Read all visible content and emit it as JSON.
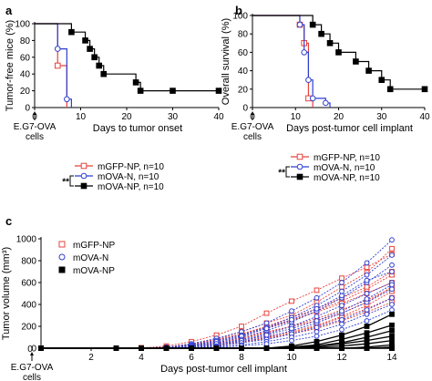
{
  "chart_data": [
    {
      "panel": "a",
      "type": "step",
      "xlabel": "Days to tumor onset",
      "ylabel": "Tumor-free mice (%)",
      "xlim": [
        0,
        40
      ],
      "ylim": [
        0,
        100
      ],
      "xticks": [
        0,
        10,
        20,
        30,
        40
      ],
      "yticks": [
        0,
        20,
        40,
        60,
        80,
        100
      ],
      "annotation": "E.G7-OVA cells",
      "significance": "**",
      "series": [
        {
          "name": "mGFP-NP, n=10",
          "color": "#e8413c",
          "marker": "square-open",
          "x": [
            0,
            5,
            5,
            7,
            7
          ],
          "y": [
            100,
            100,
            50,
            50,
            0
          ],
          "markers": [
            [
              5,
              50
            ]
          ]
        },
        {
          "name": "mOVA-N, n=10",
          "color": "#2f3fcf",
          "marker": "circle-open",
          "x": [
            0,
            5,
            5,
            7,
            7,
            8,
            8
          ],
          "y": [
            100,
            100,
            70,
            70,
            10,
            10,
            0
          ],
          "markers": [
            [
              5,
              70
            ],
            [
              7,
              10
            ]
          ]
        },
        {
          "name": "mOVA-NP, n=10",
          "color": "#000000",
          "marker": "square-filled",
          "x": [
            0,
            8,
            8,
            11,
            11,
            12,
            12,
            13,
            13,
            14,
            14,
            15,
            15,
            22,
            22,
            23,
            23,
            40
          ],
          "y": [
            100,
            100,
            90,
            90,
            80,
            80,
            70,
            70,
            60,
            60,
            50,
            50,
            40,
            40,
            30,
            30,
            20,
            20
          ],
          "markers": [
            [
              8,
              90
            ],
            [
              11,
              80
            ],
            [
              12,
              70
            ],
            [
              13,
              60
            ],
            [
              14,
              50
            ],
            [
              15,
              40
            ],
            [
              22,
              30
            ],
            [
              23,
              20
            ],
            [
              30,
              20
            ],
            [
              40,
              20
            ]
          ]
        }
      ]
    },
    {
      "panel": "b",
      "type": "step",
      "xlabel": "Days post-tumor cell implant",
      "ylabel": "Overall survival (%)",
      "xlim": [
        0,
        40
      ],
      "ylim": [
        0,
        100
      ],
      "xticks": [
        0,
        10,
        20,
        30,
        40
      ],
      "yticks": [
        0,
        20,
        40,
        60,
        80,
        100
      ],
      "annotation": "E.G7-OVA cells",
      "significance": "**",
      "series": [
        {
          "name": "mGFP-NP, n=10",
          "color": "#e8413c",
          "marker": "square-open",
          "x": [
            0,
            11,
            11,
            12,
            12,
            13,
            13,
            14,
            14
          ],
          "y": [
            100,
            100,
            90,
            90,
            70,
            70,
            10,
            10,
            0
          ],
          "markers": [
            [
              11,
              90
            ],
            [
              12,
              70
            ],
            [
              13,
              10
            ]
          ]
        },
        {
          "name": "mOVA-N, n=10",
          "color": "#2f3fcf",
          "marker": "circle-open",
          "x": [
            0,
            11,
            11,
            12,
            12,
            13,
            13,
            14,
            14,
            17,
            17,
            18,
            18
          ],
          "y": [
            100,
            100,
            90,
            90,
            60,
            60,
            30,
            30,
            10,
            10,
            5,
            5,
            0
          ],
          "markers": [
            [
              11,
              90
            ],
            [
              12,
              60
            ],
            [
              13,
              30
            ],
            [
              14,
              10
            ],
            [
              17,
              5
            ]
          ]
        },
        {
          "name": "mOVA-NP, n=10",
          "color": "#000000",
          "marker": "square-filled",
          "x": [
            0,
            14,
            14,
            16,
            16,
            18,
            18,
            20,
            20,
            24,
            24,
            27,
            27,
            30,
            30,
            32,
            32,
            40
          ],
          "y": [
            100,
            100,
            90,
            90,
            80,
            80,
            70,
            70,
            60,
            60,
            50,
            50,
            40,
            40,
            30,
            30,
            20,
            20
          ],
          "markers": [
            [
              14,
              90
            ],
            [
              16,
              80
            ],
            [
              18,
              70
            ],
            [
              20,
              60
            ],
            [
              24,
              50
            ],
            [
              27,
              40
            ],
            [
              30,
              30
            ],
            [
              32,
              20
            ],
            [
              40,
              20
            ]
          ]
        }
      ]
    },
    {
      "panel": "c",
      "type": "line",
      "xlabel": "Days post-tumor cell implant",
      "ylabel": "Tumor volume (mm³)",
      "xlim": [
        0,
        14
      ],
      "ylim": [
        0,
        1000
      ],
      "xticks": [
        2,
        4,
        6,
        8,
        10,
        12,
        14
      ],
      "extra_xtick_label": "0",
      "yticks": [
        0,
        200,
        400,
        600,
        800,
        1000
      ],
      "annotation": "E.G7-OVA cells",
      "x": [
        0,
        3,
        4,
        5,
        6,
        7,
        8,
        9,
        10,
        11,
        12,
        13,
        14
      ],
      "series": [
        {
          "name": "mGFP-NP",
          "color": "#e8413c",
          "marker": "square-open",
          "dashed": true,
          "individuals": [
            [
              0,
              0,
              0,
              10,
              40,
              80,
              150,
              230,
              300,
              420,
              560,
              690,
              910
            ],
            [
              0,
              0,
              0,
              5,
              20,
              50,
              90,
              150,
              200,
              250,
              320,
              420,
              560
            ],
            [
              0,
              0,
              0,
              20,
              60,
              120,
              200,
              320,
              430,
              530,
              640,
              740,
              860
            ],
            [
              0,
              0,
              0,
              0,
              15,
              30,
              70,
              110,
              150,
              210,
              290,
              390,
              520
            ],
            [
              0,
              0,
              0,
              5,
              25,
              60,
              110,
              180,
              250,
              340,
              430,
              540,
              670
            ],
            [
              0,
              0,
              5,
              10,
              30,
              70,
              130,
              200,
              280,
              360,
              460,
              560,
              700
            ],
            [
              0,
              0,
              0,
              0,
              10,
              25,
              55,
              95,
              140,
              200,
              280,
              360,
              460
            ],
            [
              0,
              0,
              0,
              10,
              35,
              75,
              130,
              190,
              260,
              330,
              410,
              500,
              600
            ],
            [
              0,
              0,
              0,
              5,
              20,
              45,
              90,
              140,
              200,
              270,
              350,
              440,
              550
            ],
            [
              0,
              0,
              0,
              0,
              5,
              20,
              50,
              90,
              130,
              180,
              250,
              330,
              420
            ]
          ]
        },
        {
          "name": "mOVA-N",
          "color": "#2f3fcf",
          "marker": "circle-open",
          "dashed": true,
          "individuals": [
            [
              0,
              0,
              0,
              10,
              40,
              90,
              150,
              230,
              340,
              460,
              600,
              780,
              990
            ],
            [
              0,
              0,
              0,
              5,
              30,
              70,
              120,
              190,
              280,
              390,
              520,
              670,
              850
            ],
            [
              0,
              0,
              0,
              0,
              20,
              50,
              100,
              160,
              240,
              340,
              460,
              600,
              760
            ],
            [
              0,
              0,
              0,
              5,
              25,
              60,
              110,
              180,
              260,
              360,
              480,
              620,
              700
            ],
            [
              0,
              0,
              0,
              0,
              15,
              40,
              80,
              130,
              200,
              290,
              390,
              500,
              600
            ],
            [
              0,
              0,
              0,
              0,
              10,
              30,
              60,
              100,
              160,
              230,
              320,
              420,
              540
            ],
            [
              0,
              0,
              0,
              5,
              15,
              40,
              70,
              120,
              180,
              250,
              340,
              450,
              580
            ],
            [
              0,
              0,
              0,
              0,
              10,
              20,
              50,
              80,
              130,
              190,
              260,
              350,
              460
            ],
            [
              0,
              0,
              0,
              0,
              5,
              15,
              30,
              60,
              100,
              150,
              220,
              310,
              400
            ],
            [
              0,
              0,
              0,
              0,
              0,
              10,
              20,
              40,
              70,
              110,
              170,
              250,
              350
            ]
          ]
        },
        {
          "name": "mOVA-NP",
          "color": "#000000",
          "marker": "square-filled",
          "dashed": false,
          "individuals": [
            [
              0,
              0,
              0,
              0,
              0,
              0,
              0,
              0,
              20,
              60,
              120,
              200,
              310
            ],
            [
              0,
              0,
              0,
              0,
              0,
              0,
              0,
              0,
              10,
              30,
              80,
              140,
              210
            ],
            [
              0,
              0,
              0,
              0,
              0,
              0,
              0,
              0,
              0,
              20,
              50,
              100,
              160
            ],
            [
              0,
              0,
              0,
              0,
              0,
              0,
              0,
              0,
              10,
              20,
              40,
              70,
              110
            ],
            [
              0,
              0,
              0,
              0,
              0,
              0,
              0,
              0,
              0,
              10,
              20,
              40,
              70
            ],
            [
              0,
              0,
              0,
              0,
              0,
              0,
              0,
              0,
              0,
              0,
              0,
              10,
              30
            ],
            [
              0,
              0,
              0,
              0,
              0,
              0,
              0,
              0,
              0,
              0,
              0,
              0,
              10
            ],
            [
              0,
              0,
              0,
              0,
              0,
              0,
              0,
              0,
              0,
              0,
              0,
              0,
              0
            ],
            [
              0,
              0,
              0,
              0,
              0,
              0,
              0,
              0,
              0,
              0,
              0,
              0,
              0
            ],
            [
              0,
              0,
              0,
              0,
              0,
              0,
              0,
              0,
              0,
              0,
              0,
              0,
              0
            ]
          ]
        }
      ]
    }
  ]
}
